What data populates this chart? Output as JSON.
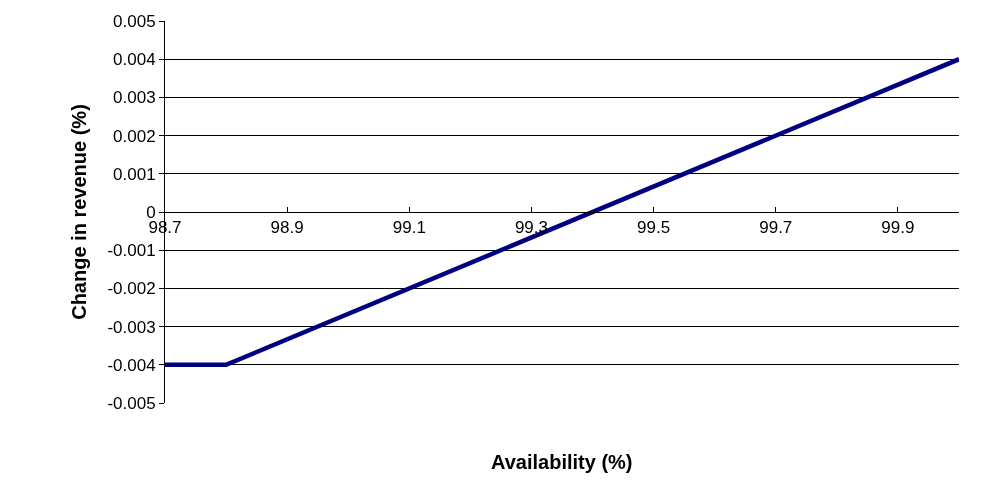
{
  "chart_data": {
    "type": "line",
    "xlabel": "Availability (%)",
    "ylabel": "Change in revenue (%)",
    "x": [
      98.7,
      98.8,
      100.0
    ],
    "series": [
      {
        "color": "#000080",
        "values": [
          -0.004,
          -0.004,
          0.004
        ]
      }
    ],
    "xlim": [
      98.7,
      100.0
    ],
    "xticks": [
      98.7,
      98.9,
      99.1,
      99.3,
      99.5,
      99.7,
      99.9
    ],
    "ylim": [
      -0.005,
      0.005
    ],
    "yticks": [
      {
        "value": -0.005,
        "label": "-0.005"
      },
      {
        "value": -0.004,
        "label": "-0.004"
      },
      {
        "value": -0.003,
        "label": "-0.003"
      },
      {
        "value": -0.002,
        "label": "-0.002"
      },
      {
        "value": -0.001,
        "label": "-0.001"
      },
      {
        "value": 0,
        "label": "0"
      },
      {
        "value": 0.001,
        "label": "0.001"
      },
      {
        "value": 0.002,
        "label": "0.002"
      },
      {
        "value": 0.003,
        "label": "0.003"
      },
      {
        "value": 0.004,
        "label": "0.004"
      },
      {
        "value": 0.005,
        "label": "0.005"
      }
    ],
    "grid": "y",
    "marker": "none",
    "line_style": "solid"
  }
}
